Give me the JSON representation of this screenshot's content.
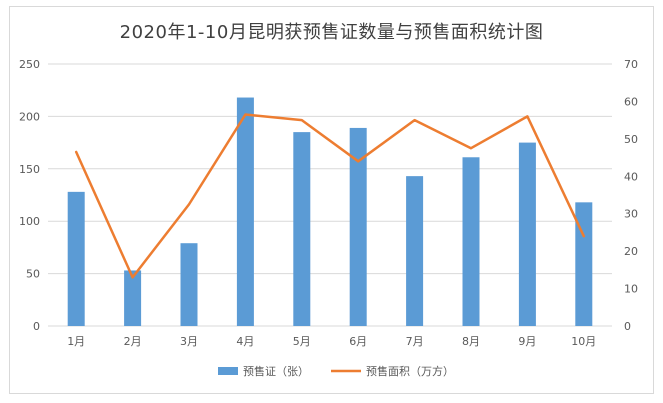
{
  "chart_data": {
    "type": "bar+line",
    "title": "2020年1-10月昆明获预售证数量与预售面积统计图",
    "categories": [
      "1月",
      "2月",
      "3月",
      "4月",
      "5月",
      "6月",
      "7月",
      "8月",
      "9月",
      "10月"
    ],
    "series": [
      {
        "name": "预售证（张）",
        "type": "bar",
        "axis": "left",
        "color": "#5b9bd5",
        "values": [
          128,
          53,
          79,
          218,
          185,
          189,
          143,
          161,
          175,
          118
        ]
      },
      {
        "name": "预售面积（万方）",
        "type": "line",
        "axis": "right",
        "color": "#ed7d31",
        "values": [
          46.5,
          13,
          32.5,
          56.5,
          55,
          44,
          55,
          47.5,
          56,
          24
        ]
      }
    ],
    "y_left": {
      "min": 0,
      "max": 250,
      "ticks": [
        0,
        50,
        100,
        150,
        200,
        250
      ]
    },
    "y_right": {
      "min": 0,
      "max": 70,
      "ticks": [
        0,
        10,
        20,
        30,
        40,
        50,
        60,
        70
      ]
    },
    "grid": true,
    "legend_position": "bottom"
  }
}
